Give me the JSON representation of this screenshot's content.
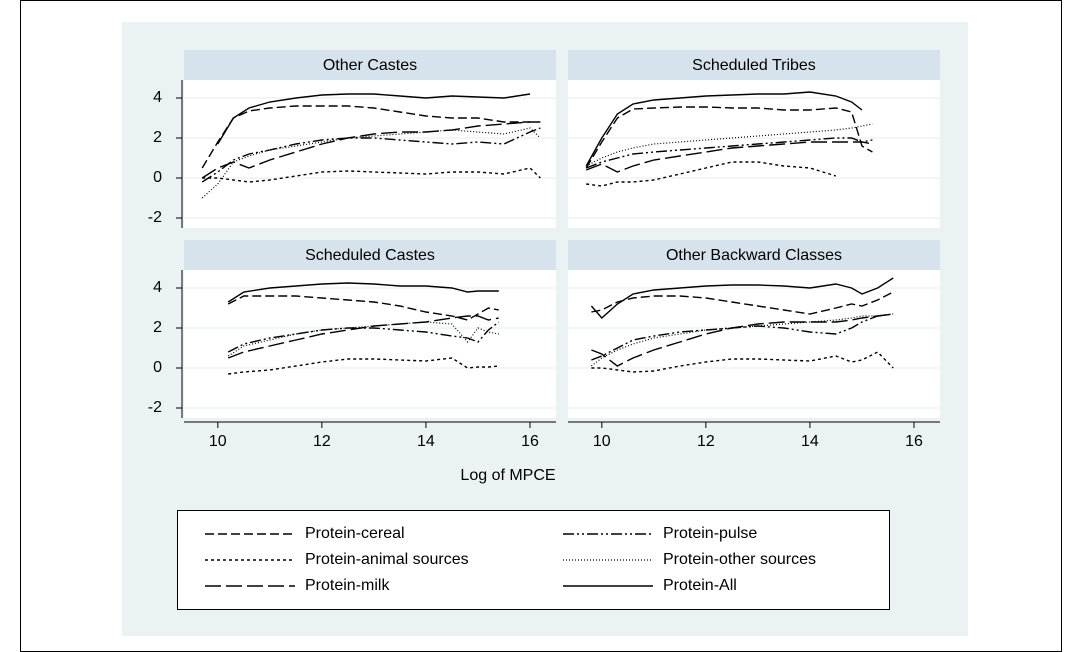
{
  "xlabel": "Log of MPCE",
  "chart_data": [
    {
      "type": "line",
      "title": "Other Castes",
      "x": [
        9.7,
        10,
        10.3,
        10.6,
        11,
        11.5,
        12,
        12.5,
        13,
        13.5,
        14,
        14.5,
        15,
        15.5,
        16,
        16.2
      ],
      "xlim": [
        9.35,
        16.5
      ],
      "ylim": [
        -2.5,
        4.9
      ],
      "yticks": [
        -2,
        0,
        2,
        4
      ],
      "grid": true,
      "series": [
        {
          "name": "Protein-cereal",
          "color": "#000000",
          "line_style": "dashed",
          "values": [
            0.5,
            1.8,
            3.0,
            3.35,
            3.5,
            3.6,
            3.6,
            3.6,
            3.5,
            3.3,
            3.1,
            3.0,
            3.0,
            2.8,
            2.8,
            null
          ]
        },
        {
          "name": "Protein-animal sources",
          "color": "#000000",
          "line_style": "dotted",
          "values": [
            0,
            0,
            -0.1,
            -0.2,
            -0.1,
            0.1,
            0.3,
            0.35,
            0.3,
            0.25,
            0.2,
            0.3,
            0.3,
            0.2,
            0.5,
            0
          ]
        },
        {
          "name": "Protein-milk",
          "color": "#000000",
          "line_style": "long-dash",
          "values": [
            0,
            0.5,
            0.8,
            0.5,
            0.9,
            1.3,
            1.7,
            2.0,
            2.2,
            2.3,
            2.3,
            2.4,
            2.6,
            2.7,
            2.8,
            2.8
          ]
        },
        {
          "name": "Protein-pulse",
          "color": "#000000",
          "line_style": "dash-dot-dot",
          "values": [
            -0.2,
            0.3,
            0.9,
            1.2,
            1.4,
            1.7,
            1.9,
            2.0,
            2.0,
            1.9,
            1.8,
            1.7,
            1.8,
            1.7,
            2.3,
            2.5
          ]
        },
        {
          "name": "Protein-other sources",
          "color": "#000000",
          "line_style": "fine-dotted",
          "values": [
            -1.0,
            -0.3,
            0.8,
            1.1,
            1.4,
            1.6,
            1.8,
            2.0,
            2.1,
            2.2,
            2.3,
            2.4,
            2.3,
            2.2,
            2.5,
            2.0
          ]
        },
        {
          "name": "Protein-All",
          "color": "#000000",
          "line_style": "solid",
          "values": [
            null,
            1.7,
            3.0,
            3.5,
            3.8,
            4.0,
            4.15,
            4.2,
            4.2,
            4.1,
            4.0,
            4.1,
            4.05,
            4.0,
            4.2,
            null
          ]
        }
      ]
    },
    {
      "type": "line",
      "title": "Scheduled Tribes",
      "x": [
        9.7,
        10,
        10.3,
        10.6,
        11,
        11.5,
        12,
        12.5,
        13,
        13.5,
        14,
        14.5,
        14.8,
        15,
        15.2
      ],
      "xlim": [
        9.35,
        16.5
      ],
      "ylim": [
        -2.5,
        4.9
      ],
      "yticks": [
        -2,
        0,
        2,
        4
      ],
      "grid": true,
      "series": [
        {
          "name": "Protein-cereal",
          "color": "#000000",
          "line_style": "dashed",
          "values": [
            0.5,
            1.8,
            3.0,
            3.45,
            3.5,
            3.55,
            3.55,
            3.5,
            3.5,
            3.4,
            3.4,
            3.5,
            3.3,
            1.6,
            1.3
          ]
        },
        {
          "name": "Protein-animal sources",
          "color": "#000000",
          "line_style": "dotted",
          "values": [
            -0.3,
            -0.4,
            -0.2,
            -0.2,
            -0.1,
            0.2,
            0.5,
            0.8,
            0.8,
            0.6,
            0.5,
            0.1,
            null,
            null,
            null
          ]
        },
        {
          "name": "Protein-milk",
          "color": "#000000",
          "line_style": "long-dash",
          "values": [
            0.4,
            0.7,
            0.3,
            0.6,
            0.9,
            1.1,
            1.3,
            1.5,
            1.6,
            1.7,
            1.8,
            1.8,
            1.8,
            1.8,
            1.7
          ]
        },
        {
          "name": "Protein-pulse",
          "color": "#000000",
          "line_style": "dash-dot-dot",
          "values": [
            0.5,
            0.8,
            1.0,
            1.2,
            1.3,
            1.4,
            1.5,
            1.6,
            1.7,
            1.8,
            1.9,
            2.0,
            2.0,
            1.8,
            1.9
          ]
        },
        {
          "name": "Protein-other sources",
          "color": "#000000",
          "line_style": "fine-dotted",
          "values": [
            0.6,
            1.0,
            1.3,
            1.5,
            1.7,
            1.8,
            1.9,
            2.0,
            2.1,
            2.2,
            2.3,
            2.4,
            2.5,
            2.6,
            2.7
          ]
        },
        {
          "name": "Protein-All",
          "color": "#000000",
          "line_style": "solid",
          "values": [
            0.6,
            2.0,
            3.2,
            3.7,
            3.9,
            4.0,
            4.1,
            4.15,
            4.2,
            4.2,
            4.3,
            4.1,
            3.8,
            3.4,
            null
          ]
        }
      ]
    },
    {
      "type": "line",
      "title": "Scheduled Castes",
      "x": [
        10.2,
        10.5,
        11,
        11.5,
        12,
        12.5,
        13,
        13.5,
        14,
        14.5,
        14.8,
        15,
        15.2,
        15.4
      ],
      "xlim": [
        9.35,
        16.5
      ],
      "xticks": [
        10,
        12,
        14,
        16
      ],
      "ylim": [
        -2.5,
        4.9
      ],
      "yticks": [
        -2,
        0,
        2,
        4
      ],
      "grid": true,
      "series": [
        {
          "name": "Protein-cereal",
          "color": "#000000",
          "line_style": "dashed",
          "values": [
            3.2,
            3.6,
            3.6,
            3.6,
            3.5,
            3.4,
            3.3,
            3.1,
            2.8,
            2.6,
            2.4,
            2.7,
            3.0,
            2.9
          ]
        },
        {
          "name": "Protein-animal sources",
          "color": "#000000",
          "line_style": "dotted",
          "values": [
            -0.3,
            -0.2,
            -0.1,
            0.1,
            0.3,
            0.45,
            0.45,
            0.4,
            0.35,
            0.5,
            0.0,
            0.05,
            0.05,
            0.1
          ]
        },
        {
          "name": "Protein-milk",
          "color": "#000000",
          "line_style": "long-dash",
          "values": [
            0.5,
            0.8,
            1.1,
            1.4,
            1.7,
            1.9,
            2.1,
            2.2,
            2.3,
            2.5,
            2.6,
            2.6,
            2.4,
            2.5
          ]
        },
        {
          "name": "Protein-pulse",
          "color": "#000000",
          "line_style": "dash-dot-dot",
          "values": [
            0.8,
            1.2,
            1.5,
            1.7,
            1.9,
            2.0,
            2.0,
            1.9,
            1.8,
            1.6,
            1.5,
            1.3,
            1.9,
            2.3
          ]
        },
        {
          "name": "Protein-other sources",
          "color": "#000000",
          "line_style": "fine-dotted",
          "values": [
            0.6,
            1.1,
            1.4,
            1.7,
            1.9,
            2.0,
            2.1,
            2.2,
            2.3,
            2.2,
            1.3,
            2.0,
            1.8,
            1.7
          ]
        },
        {
          "name": "Protein-All",
          "color": "#000000",
          "line_style": "solid",
          "values": [
            3.3,
            3.8,
            4.0,
            4.1,
            4.2,
            4.25,
            4.2,
            4.1,
            4.1,
            4.0,
            3.8,
            3.85,
            3.85,
            3.85
          ]
        }
      ]
    },
    {
      "type": "line",
      "title": "Other Backward Classes",
      "x": [
        9.8,
        10,
        10.3,
        10.6,
        11,
        11.5,
        12,
        12.5,
        13,
        13.5,
        14,
        14.5,
        14.8,
        15,
        15.3,
        15.6
      ],
      "xlim": [
        9.35,
        16.5
      ],
      "xticks": [
        10,
        12,
        14,
        16
      ],
      "ylim": [
        -2.5,
        4.9
      ],
      "yticks": [
        -2,
        0,
        2,
        4
      ],
      "grid": true,
      "series": [
        {
          "name": "Protein-cereal",
          "color": "#000000",
          "line_style": "dashed",
          "values": [
            2.8,
            2.9,
            3.3,
            3.5,
            3.6,
            3.6,
            3.5,
            3.3,
            3.1,
            2.9,
            2.7,
            3.0,
            3.2,
            3.1,
            3.4,
            3.8
          ]
        },
        {
          "name": "Protein-animal sources",
          "color": "#000000",
          "line_style": "dotted",
          "values": [
            0,
            0,
            -0.1,
            -0.2,
            -0.15,
            0.1,
            0.3,
            0.45,
            0.45,
            0.4,
            0.35,
            0.6,
            0.3,
            0.4,
            0.8,
            0
          ]
        },
        {
          "name": "Protein-milk",
          "color": "#000000",
          "line_style": "long-dash",
          "values": [
            0.9,
            0.7,
            0.1,
            0.5,
            0.9,
            1.3,
            1.7,
            2.0,
            2.2,
            2.3,
            2.3,
            2.3,
            2.4,
            2.5,
            2.6,
            2.7
          ]
        },
        {
          "name": "Protein-pulse",
          "color": "#000000",
          "line_style": "dash-dot-dot",
          "values": [
            0.4,
            0.6,
            1.0,
            1.4,
            1.6,
            1.8,
            1.9,
            2.0,
            2.1,
            2.0,
            1.8,
            1.7,
            2.0,
            2.3,
            2.6,
            2.7
          ]
        },
        {
          "name": "Protein-other sources",
          "color": "#000000",
          "line_style": "fine-dotted",
          "values": [
            0.1,
            0.5,
            0.9,
            1.2,
            1.5,
            1.7,
            1.9,
            2.0,
            2.1,
            2.2,
            2.3,
            2.4,
            2.5,
            2.6,
            2.6,
            2.7
          ]
        },
        {
          "name": "Protein-All",
          "color": "#000000",
          "line_style": "solid",
          "values": [
            3.1,
            2.5,
            3.2,
            3.7,
            3.9,
            4.0,
            4.1,
            4.15,
            4.15,
            4.1,
            4.0,
            4.2,
            4.0,
            3.7,
            4.0,
            4.5
          ]
        }
      ]
    }
  ]
}
